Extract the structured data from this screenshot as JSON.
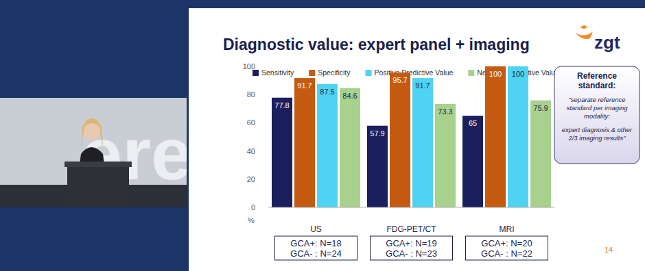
{
  "chart_data": {
    "type": "bar",
    "title": "Diagnostic value: expert panel + imaging",
    "categories": [
      "US",
      "FDG-PET/CT",
      "MRI"
    ],
    "series": [
      {
        "name": "Sensitivity",
        "color": "#1b1f5e",
        "values": [
          77.8,
          57.9,
          65
        ]
      },
      {
        "name": "Specificity",
        "color": "#c55a11",
        "values": [
          91.7,
          95.7,
          100
        ]
      },
      {
        "name": "Positive Predictive Value",
        "color": "#4fd3f2",
        "values": [
          87.5,
          91.7,
          100
        ]
      },
      {
        "name": "Negative Predictive Value",
        "color": "#a9d18e",
        "values": [
          84.6,
          73.3,
          75.9
        ]
      }
    ],
    "y_label": "%",
    "ylim": [
      0,
      100
    ],
    "yticks": [
      0,
      20,
      40,
      60,
      80,
      100
    ],
    "grid": false,
    "legend": "top",
    "data_labels": true
  },
  "slide": {
    "logo": "zgt",
    "reference_box": {
      "heading": "Reference standard:",
      "lines": [
        "\"separate reference standard per imaging modality:",
        "expert diagnosis & other 2/3 imaging results\""
      ]
    },
    "group_notes": [
      [
        "GCA+: N=18",
        "GCA- : N=24"
      ],
      [
        "GCA+: N=19",
        "GCA- : N=23"
      ],
      [
        "GCA+: N=20",
        "GCA- : N=22"
      ]
    ],
    "page_number": "14",
    "backdrop_text": "erenc"
  }
}
